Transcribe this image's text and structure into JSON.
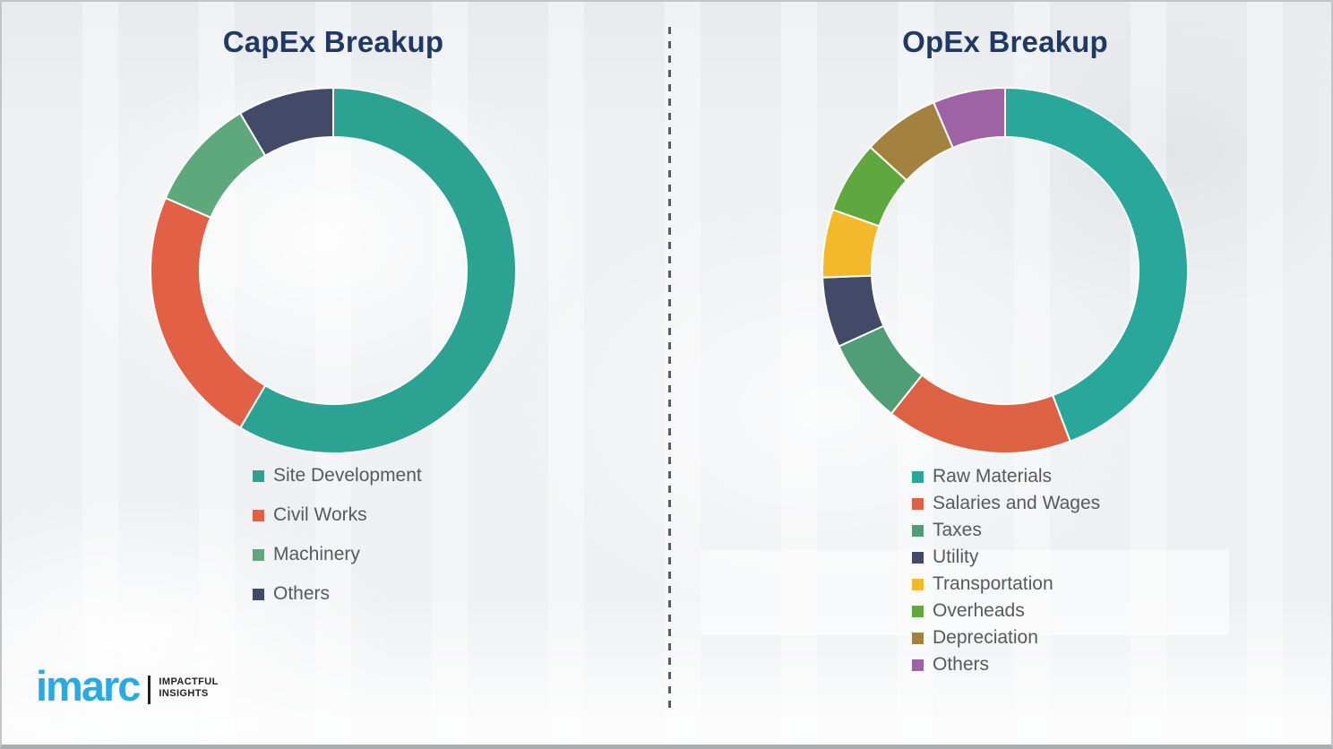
{
  "page": {
    "background_color": "#eef0f2",
    "title_color": "#1F3864",
    "legend_text_color": "#595959",
    "divider_color": "#5a5a5a"
  },
  "logo": {
    "brand": "imarc",
    "tagline_line1": "IMPACTFUL",
    "tagline_line2": "INSIGHTS",
    "brand_color": "#29ABE2",
    "tagline_color": "#231F20"
  },
  "chart_data": [
    {
      "type": "pie",
      "subtype": "donut",
      "title": "CapEx Breakup",
      "labels": [
        "Site Development",
        "Civil Works",
        "Machinery",
        "Others"
      ],
      "values": [
        58.5,
        23.0,
        10.0,
        8.5
      ],
      "values_unit": "percent (estimated from arc angles; no numeric labels shown)",
      "colors": [
        "#2CA293",
        "#E26146",
        "#5EA87B",
        "#434A68"
      ],
      "start_angle_deg": 0,
      "direction": "clockwise",
      "inner_radius_ratio": 0.73,
      "segment_gap_color": "#ffffff",
      "legend_position": "below-left"
    },
    {
      "type": "pie",
      "subtype": "donut",
      "title": "OpEx Breakup",
      "labels": [
        "Raw Materials",
        "Salaries and Wages",
        "Taxes",
        "Utility",
        "Transportation",
        "Overheads",
        "Depreciation",
        "Others"
      ],
      "values": [
        44.2,
        16.5,
        7.5,
        6.2,
        6.0,
        6.4,
        6.8,
        6.4
      ],
      "values_unit": "percent (estimated from arc angles; no numeric labels shown)",
      "colors": [
        "#29A79A",
        "#DD6243",
        "#4F9E77",
        "#434A68",
        "#F4B92A",
        "#5FA73F",
        "#A3823F",
        "#9D63A5"
      ],
      "start_angle_deg": 0,
      "direction": "clockwise",
      "inner_radius_ratio": 0.73,
      "segment_gap_color": "#ffffff",
      "legend_position": "below-left"
    }
  ]
}
